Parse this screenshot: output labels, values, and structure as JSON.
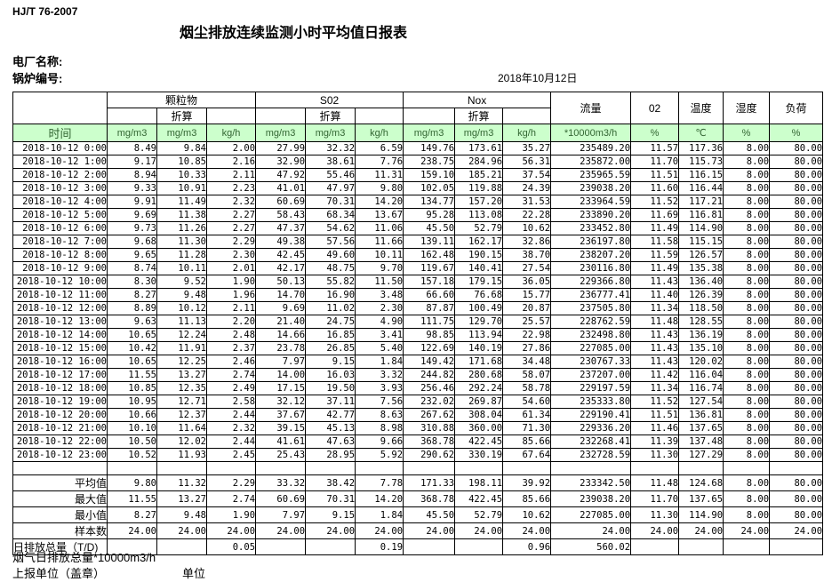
{
  "page": {
    "standard": "HJ/T  76-2007",
    "title": "烟尘排放连续监测小时平均值日报表",
    "plant_name_label": "电厂名称:",
    "boiler_no_label": "锅炉编号:",
    "report_date": "2018年10月12日"
  },
  "table": {
    "time_label": "时间",
    "converted_label": "折算",
    "group_headers": {
      "particulate": "颗粒物",
      "so2": "S02",
      "nox": "Nox",
      "flow": "流量",
      "o2": "02",
      "temperature": "温度",
      "humidity": "湿度",
      "load": "负荷"
    },
    "units": {
      "mg": "mg/m3",
      "kgh": "kg/h",
      "flow": "*10000m3/h",
      "percent": "%",
      "celsius": "℃"
    },
    "rows": [
      {
        "time": "2018-10-12 0:00",
        "values": [
          "8.49",
          "9.84",
          "2.00",
          "27.99",
          "32.32",
          "6.59",
          "149.76",
          "173.61",
          "35.27",
          "235489.20",
          "11.57",
          "117.36",
          "8.00",
          "80.00"
        ]
      },
      {
        "time": "2018-10-12 1:00",
        "values": [
          "9.17",
          "10.85",
          "2.16",
          "32.90",
          "38.61",
          "7.76",
          "238.75",
          "284.96",
          "56.31",
          "235872.00",
          "11.70",
          "115.73",
          "8.00",
          "80.00"
        ]
      },
      {
        "time": "2018-10-12 2:00",
        "values": [
          "8.94",
          "10.33",
          "2.11",
          "47.92",
          "55.46",
          "11.31",
          "159.10",
          "185.21",
          "37.54",
          "235965.59",
          "11.51",
          "116.15",
          "8.00",
          "80.00"
        ]
      },
      {
        "time": "2018-10-12 3:00",
        "values": [
          "9.33",
          "10.91",
          "2.23",
          "41.01",
          "47.97",
          "9.80",
          "102.05",
          "119.88",
          "24.39",
          "239038.20",
          "11.60",
          "116.44",
          "8.00",
          "80.00"
        ]
      },
      {
        "time": "2018-10-12 4:00",
        "values": [
          "9.91",
          "11.49",
          "2.32",
          "60.69",
          "70.31",
          "14.20",
          "134.77",
          "157.20",
          "31.53",
          "233964.59",
          "11.52",
          "117.21",
          "8.00",
          "80.00"
        ]
      },
      {
        "time": "2018-10-12 5:00",
        "values": [
          "9.69",
          "11.38",
          "2.27",
          "58.43",
          "68.34",
          "13.67",
          "95.28",
          "113.08",
          "22.28",
          "233890.20",
          "11.69",
          "116.81",
          "8.00",
          "80.00"
        ]
      },
      {
        "time": "2018-10-12 6:00",
        "values": [
          "9.73",
          "11.26",
          "2.27",
          "47.37",
          "54.62",
          "11.06",
          "45.50",
          "52.79",
          "10.62",
          "233452.80",
          "11.49",
          "114.90",
          "8.00",
          "80.00"
        ]
      },
      {
        "time": "2018-10-12 7:00",
        "values": [
          "9.68",
          "11.30",
          "2.29",
          "49.38",
          "57.56",
          "11.66",
          "139.11",
          "162.17",
          "32.86",
          "236197.80",
          "11.58",
          "115.15",
          "8.00",
          "80.00"
        ]
      },
      {
        "time": "2018-10-12 8:00",
        "values": [
          "9.65",
          "11.28",
          "2.30",
          "42.45",
          "49.60",
          "10.11",
          "162.48",
          "190.15",
          "38.70",
          "238207.20",
          "11.59",
          "126.57",
          "8.00",
          "80.00"
        ]
      },
      {
        "time": "2018-10-12 9:00",
        "values": [
          "8.74",
          "10.11",
          "2.01",
          "42.17",
          "48.75",
          "9.70",
          "119.67",
          "140.41",
          "27.54",
          "230116.80",
          "11.49",
          "135.38",
          "8.00",
          "80.00"
        ]
      },
      {
        "time": "2018-10-12 10:00",
        "values": [
          "8.30",
          "9.52",
          "1.90",
          "50.13",
          "55.82",
          "11.50",
          "157.18",
          "179.15",
          "36.05",
          "229366.80",
          "11.43",
          "136.40",
          "8.00",
          "80.00"
        ]
      },
      {
        "time": "2018-10-12 11:00",
        "values": [
          "8.27",
          "9.48",
          "1.96",
          "14.70",
          "16.90",
          "3.48",
          "66.60",
          "76.68",
          "15.77",
          "236777.41",
          "11.40",
          "126.39",
          "8.00",
          "80.00"
        ]
      },
      {
        "time": "2018-10-12 12:00",
        "values": [
          "8.89",
          "10.12",
          "2.11",
          "9.69",
          "11.02",
          "2.30",
          "87.87",
          "100.49",
          "20.87",
          "237505.80",
          "11.34",
          "118.50",
          "8.00",
          "80.00"
        ]
      },
      {
        "time": "2018-10-12 13:00",
        "values": [
          "9.63",
          "11.13",
          "2.20",
          "21.40",
          "24.75",
          "4.90",
          "111.75",
          "129.70",
          "25.57",
          "228762.59",
          "11.48",
          "128.55",
          "8.00",
          "80.00"
        ]
      },
      {
        "time": "2018-10-12 14:00",
        "values": [
          "10.65",
          "12.24",
          "2.48",
          "14.66",
          "16.85",
          "3.41",
          "98.85",
          "113.94",
          "22.98",
          "232498.80",
          "11.43",
          "136.19",
          "8.00",
          "80.00"
        ]
      },
      {
        "time": "2018-10-12 15:00",
        "values": [
          "10.42",
          "11.91",
          "2.37",
          "23.78",
          "26.85",
          "5.40",
          "122.69",
          "140.19",
          "27.86",
          "227085.00",
          "11.43",
          "135.10",
          "8.00",
          "80.00"
        ]
      },
      {
        "time": "2018-10-12 16:00",
        "values": [
          "10.65",
          "12.25",
          "2.46",
          "7.97",
          "9.15",
          "1.84",
          "149.42",
          "171.68",
          "34.48",
          "230767.33",
          "11.43",
          "120.02",
          "8.00",
          "80.00"
        ]
      },
      {
        "time": "2018-10-12 17:00",
        "values": [
          "11.55",
          "13.27",
          "2.74",
          "14.00",
          "16.03",
          "3.32",
          "244.82",
          "280.68",
          "58.07",
          "237207.00",
          "11.42",
          "116.04",
          "8.00",
          "80.00"
        ]
      },
      {
        "time": "2018-10-12 18:00",
        "values": [
          "10.85",
          "12.35",
          "2.49",
          "17.15",
          "19.50",
          "3.93",
          "256.46",
          "292.24",
          "58.78",
          "229197.59",
          "11.34",
          "116.74",
          "8.00",
          "80.00"
        ]
      },
      {
        "time": "2018-10-12 19:00",
        "values": [
          "10.95",
          "12.71",
          "2.58",
          "32.12",
          "37.11",
          "7.56",
          "232.02",
          "269.87",
          "54.60",
          "235333.80",
          "11.52",
          "127.54",
          "8.00",
          "80.00"
        ]
      },
      {
        "time": "2018-10-12 20:00",
        "values": [
          "10.66",
          "12.37",
          "2.44",
          "37.67",
          "42.77",
          "8.63",
          "267.62",
          "308.04",
          "61.34",
          "229190.41",
          "11.51",
          "136.81",
          "8.00",
          "80.00"
        ]
      },
      {
        "time": "2018-10-12 21:00",
        "values": [
          "10.10",
          "11.64",
          "2.32",
          "39.15",
          "45.13",
          "8.98",
          "310.88",
          "360.00",
          "71.30",
          "229336.20",
          "11.46",
          "137.65",
          "8.00",
          "80.00"
        ]
      },
      {
        "time": "2018-10-12 22:00",
        "values": [
          "10.50",
          "12.02",
          "2.44",
          "41.61",
          "47.63",
          "9.66",
          "368.78",
          "422.45",
          "85.66",
          "232268.41",
          "11.39",
          "137.48",
          "8.00",
          "80.00"
        ]
      },
      {
        "time": "2018-10-12 23:00",
        "values": [
          "10.52",
          "11.93",
          "2.45",
          "25.43",
          "28.95",
          "5.92",
          "290.62",
          "330.19",
          "67.64",
          "232728.59",
          "11.30",
          "127.29",
          "8.00",
          "80.00"
        ]
      }
    ],
    "summary_rows": [
      {
        "label": "平均值",
        "label_left": false,
        "values": [
          "9.80",
          "11.32",
          "2.29",
          "33.32",
          "38.42",
          "7.78",
          "171.33",
          "198.11",
          "39.92",
          "233342.50",
          "11.48",
          "124.68",
          "8.00",
          "80.00"
        ]
      },
      {
        "label": "最大值",
        "label_left": false,
        "values": [
          "11.55",
          "13.27",
          "2.74",
          "60.69",
          "70.31",
          "14.20",
          "368.78",
          "422.45",
          "85.66",
          "239038.20",
          "11.70",
          "137.65",
          "8.00",
          "80.00"
        ]
      },
      {
        "label": "最小值",
        "label_left": false,
        "values": [
          "8.27",
          "9.48",
          "1.90",
          "7.97",
          "9.15",
          "1.84",
          "45.50",
          "52.79",
          "10.62",
          "227085.00",
          "11.30",
          "114.90",
          "8.00",
          "80.00"
        ]
      },
      {
        "label": "样本数",
        "label_left": false,
        "values": [
          "24.00",
          "24.00",
          "24.00",
          "24.00",
          "24.00",
          "24.00",
          "24.00",
          "24.00",
          "24.00",
          "24.00",
          "24.00",
          "24.00",
          "24.00",
          "24.00"
        ]
      },
      {
        "label": "日排放总量（T/D)",
        "label_left": true,
        "values": [
          "",
          "",
          "0.05",
          "",
          "",
          "0.19",
          "",
          "",
          "0.96",
          "560.02",
          "",
          "",
          "",
          ""
        ]
      }
    ]
  },
  "footer": {
    "flue_gas_total": "烟气日排放总量*10000m3/h",
    "report_unit_label": "上报单位（盖章）",
    "unit_label": "单位"
  },
  "colors": {
    "header_bg": "#ccffcc",
    "header_text": "#336633",
    "grid": "#000000",
    "page_bg": "#ffffff"
  }
}
